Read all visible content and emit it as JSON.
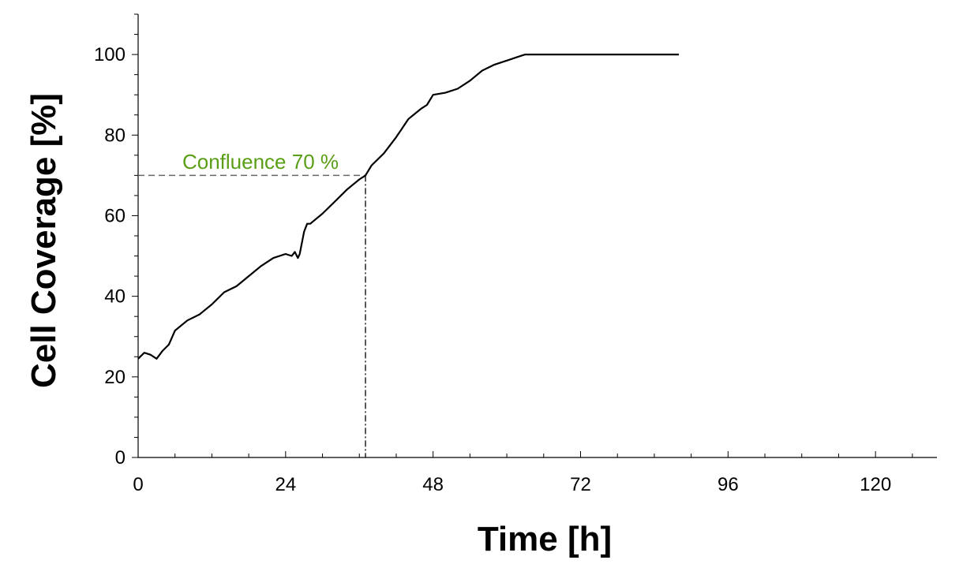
{
  "chart_data": {
    "type": "line",
    "title": "",
    "xlabel": "Time [h]",
    "ylabel": "Cell Coverage [%]",
    "xlim": [
      0,
      130
    ],
    "ylim": [
      0,
      110
    ],
    "x_ticks": [
      0,
      24,
      48,
      72,
      96,
      120
    ],
    "y_ticks": [
      0,
      20,
      40,
      60,
      80,
      100
    ],
    "grid": false,
    "series": [
      {
        "color": "#000000",
        "x": [
          0,
          1,
          2,
          3,
          4,
          5,
          6,
          8,
          10,
          12,
          14,
          16,
          18,
          20,
          22,
          24,
          25,
          25.5,
          26,
          26.3,
          27,
          27.5,
          28,
          30,
          32,
          34,
          36,
          37,
          38,
          40,
          42,
          44,
          46,
          47,
          48,
          50,
          52,
          54,
          56,
          58,
          60,
          62,
          63,
          64,
          70,
          76,
          82,
          88
        ],
        "y": [
          24.5,
          26,
          25.5,
          24.5,
          26.5,
          28,
          31.5,
          34,
          35.5,
          38,
          41,
          42.5,
          45,
          47.5,
          49.5,
          50.5,
          50,
          51,
          49.5,
          50.5,
          56,
          58,
          58,
          60.5,
          63.5,
          66.5,
          69,
          70,
          72.5,
          75.5,
          79.5,
          84,
          86.5,
          87.5,
          90,
          90.5,
          91.5,
          93.5,
          96,
          97.5,
          98.5,
          99.5,
          100,
          100,
          100,
          100,
          100,
          100
        ]
      }
    ],
    "annotations": {
      "confluence_label": "Confluence 70 %",
      "confluence_color": "#5a9e16",
      "confluence_y": 70,
      "confluence_x": 37
    }
  }
}
